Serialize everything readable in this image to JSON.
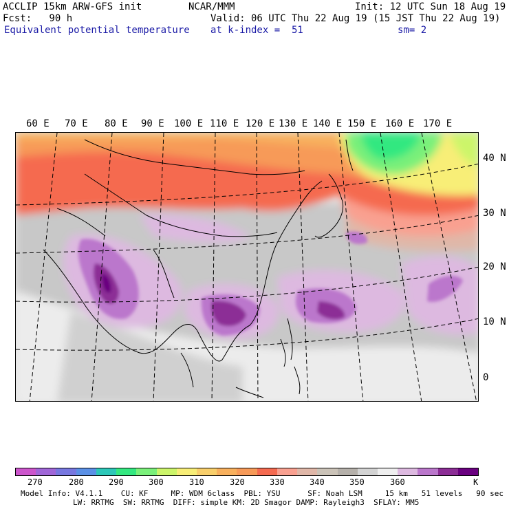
{
  "header": {
    "left1": "ACCLIP 15km ARW-GFS init",
    "left2": "Fcst:   90 h",
    "left3": "Equivalent potential temperature",
    "center1": "NCAR/MMM",
    "valid": "Valid: 06 UTC Thu 22 Aug 19 (15 JST Thu 22 Aug 19)",
    "level": "at k-index =  51",
    "init": "Init: 12 UTC Sun 18 Aug 19",
    "sm": "sm= 2"
  },
  "lon_labels": [
    "60 E",
    "70 E",
    "80 E",
    "90 E",
    "100 E",
    "110 E",
    "120 E",
    "130 E",
    "140 E",
    "150 E",
    "160 E",
    "170 E"
  ],
  "lat_labels": [
    "40 N",
    "30 N",
    "20 N",
    "10 N",
    "0"
  ],
  "colorbar": {
    "colors": [
      "#cc55cc",
      "#a066d8",
      "#7777e0",
      "#5a90e6",
      "#2cc7b8",
      "#33e880",
      "#7af07a",
      "#ccf56a",
      "#f8ee77",
      "#f9cf6b",
      "#f8b05d",
      "#f79a58",
      "#f56a50",
      "#f9a090",
      "#e0b7a8",
      "#cbc3b8",
      "#b5b0aa",
      "#d3d3d3",
      "#efefef",
      "#ddb9e0",
      "#bb77cc",
      "#8c2d96",
      "#6a0080"
    ],
    "labels": [
      "270",
      "280",
      "290",
      "300",
      "310",
      "320",
      "330",
      "340",
      "350",
      "360"
    ],
    "unit": "K"
  },
  "model_info": {
    "line1": "Model Info: V4.1.1    CU: KF     MP: WDM 6class  PBL: YSU      SF: Noah LSM     15 km   51 levels   90 sec",
    "line2": "LW: RRTMG  SW: RRTMG  DIFF: simple KM: 2D Smagor DAMP: Rayleigh3  SFLAY: MM5"
  }
}
